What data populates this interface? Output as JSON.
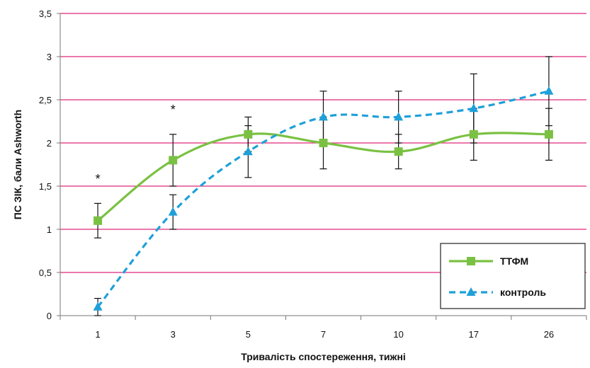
{
  "chart_data": {
    "type": "line",
    "categories": [
      "1",
      "3",
      "5",
      "7",
      "10",
      "17",
      "26"
    ],
    "xlabel": "Тривалість спостереження, тижні",
    "ylabel": "ПС ЗІК, бали Ashworth",
    "ylim": [
      0,
      3.5
    ],
    "yticks": [
      "0",
      "0,5",
      "1",
      "1,5",
      "2",
      "2,5",
      "3",
      "3,5"
    ],
    "grid": "horizontal",
    "legend_position": "bottom-right",
    "series": [
      {
        "name": "ТТФМ",
        "color": "#7ac143",
        "line_style": "solid",
        "marker": "square",
        "values": [
          1.1,
          1.8,
          2.1,
          2.0,
          1.9,
          2.1,
          2.1
        ],
        "err_low": [
          0.9,
          1.5,
          1.9,
          1.7,
          1.7,
          1.8,
          1.8
        ],
        "err_high": [
          1.3,
          2.1,
          2.3,
          2.3,
          2.1,
          2.4,
          2.4
        ]
      },
      {
        "name": "контроль",
        "color": "#1fa0d8",
        "line_style": "dashed",
        "marker": "triangle",
        "values": [
          0.1,
          1.2,
          1.9,
          2.3,
          2.3,
          2.4,
          2.6
        ],
        "err_low": [
          0.0,
          1.0,
          1.6,
          2.0,
          2.0,
          2.0,
          2.2
        ],
        "err_high": [
          0.2,
          1.4,
          2.2,
          2.6,
          2.6,
          2.8,
          3.0
        ]
      }
    ],
    "annotations": [
      {
        "text": "*",
        "category": "1",
        "y": 1.6
      },
      {
        "text": "*",
        "category": "3",
        "y": 2.4
      }
    ]
  },
  "colors": {
    "grid": "#e0287a",
    "axis": "#777777"
  }
}
